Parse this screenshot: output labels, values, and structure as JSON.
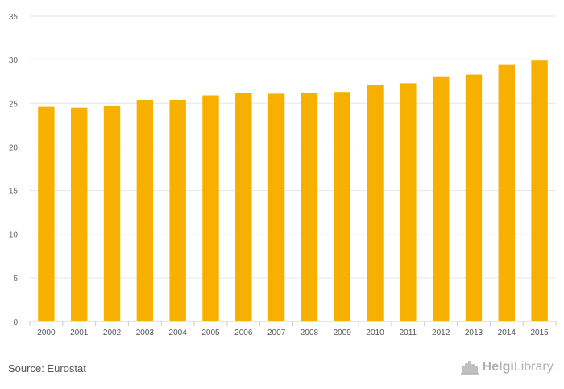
{
  "chart_data": {
    "type": "bar",
    "categories": [
      "2000",
      "2001",
      "2002",
      "2003",
      "2004",
      "2005",
      "2006",
      "2007",
      "2008",
      "2009",
      "2010",
      "2011",
      "2012",
      "2013",
      "2014",
      "2015"
    ],
    "series": [
      {
        "values": [
          24.6,
          24.5,
          24.7,
          25.4,
          25.4,
          25.9,
          26.2,
          26.1,
          26.2,
          26.3,
          27.1,
          27.3,
          28.1,
          28.3,
          29.4,
          29.9
        ]
      }
    ],
    "ylim": [
      0,
      35
    ],
    "yticks": [
      0,
      5,
      10,
      15,
      20,
      25,
      30,
      35
    ],
    "grid": true,
    "bar_color": "#f8b000",
    "title": "",
    "xlabel": "",
    "ylabel": ""
  },
  "footer": {
    "source": "Source: Eurostat",
    "brand_part1": "Helgi",
    "brand_part2": "Library."
  }
}
